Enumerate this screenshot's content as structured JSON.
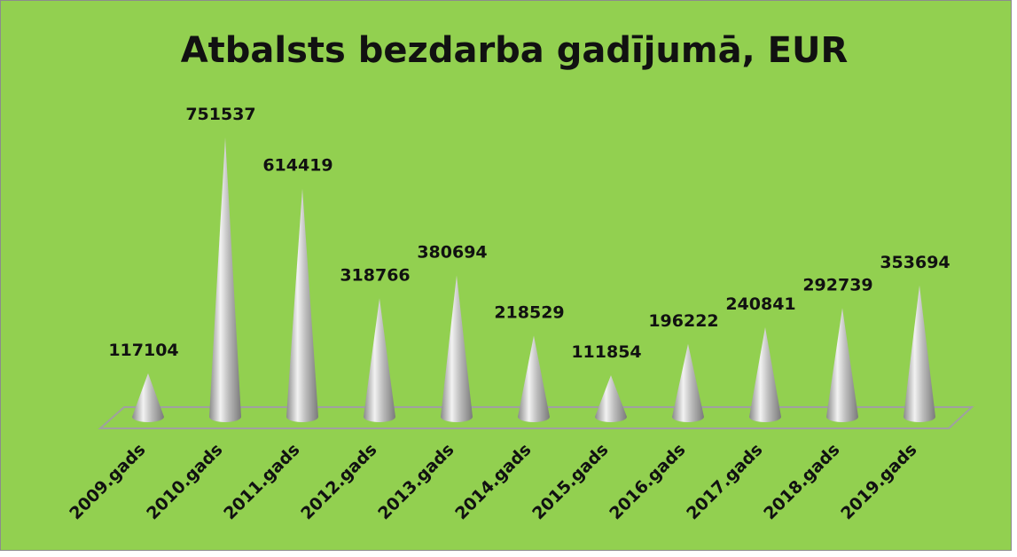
{
  "chart_data": {
    "type": "cone",
    "title": "Atbalsts bezdarba gadījumā, EUR",
    "categories": [
      "2009.gads",
      "2010.gads",
      "2011.gads",
      "2012.gads",
      "2013.gads",
      "2014.gads",
      "2015.gads",
      "2016.gads",
      "2017.gads",
      "2018.gads",
      "2019.gads"
    ],
    "values": [
      117104,
      751537,
      614419,
      318766,
      380694,
      218529,
      111854,
      196222,
      240841,
      292739,
      353694
    ],
    "color": "#a6a6a6",
    "background": "#92d050"
  }
}
